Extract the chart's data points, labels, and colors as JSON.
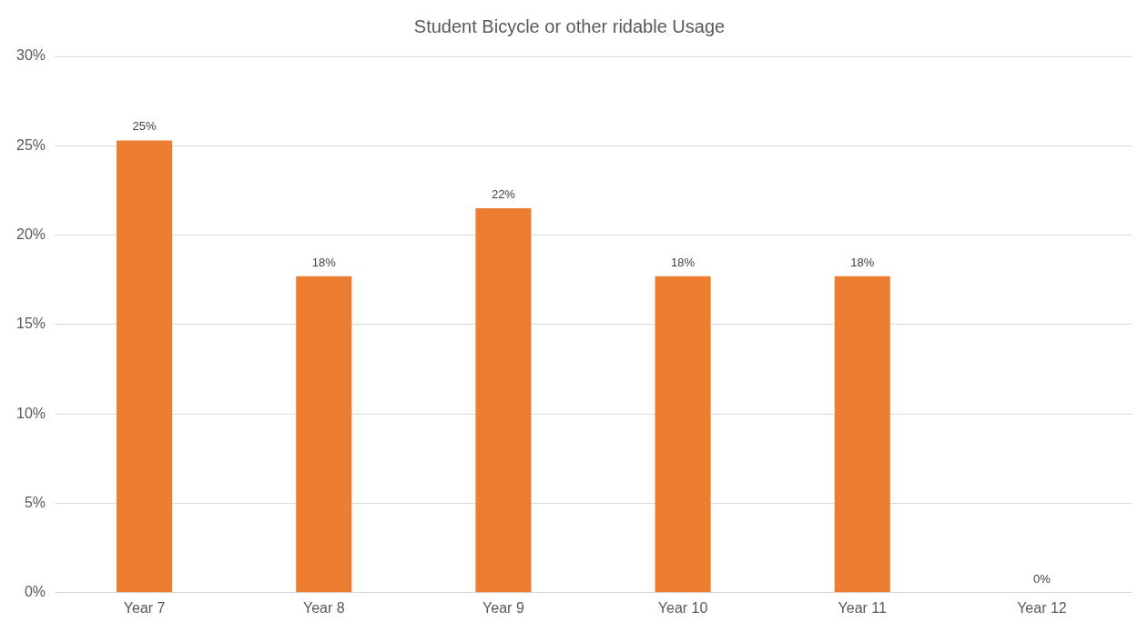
{
  "chart_data": {
    "type": "bar",
    "title": "Student Bicycle or other ridable Usage",
    "categories": [
      "Year 7",
      "Year 8",
      "Year 9",
      "Year 10",
      "Year 11",
      "Year 12"
    ],
    "values": [
      25.3,
      17.7,
      21.5,
      17.7,
      17.7,
      0
    ],
    "value_labels": [
      "25%",
      "18%",
      "22%",
      "18%",
      "18%",
      "0%"
    ],
    "color": "#ed7d31",
    "ylim": [
      0,
      30
    ],
    "yticks": [
      {
        "value": 0,
        "label": "0%"
      },
      {
        "value": 5,
        "label": "5%"
      },
      {
        "value": 10,
        "label": "10%"
      },
      {
        "value": 15,
        "label": "15%"
      },
      {
        "value": 20,
        "label": "20%"
      },
      {
        "value": 25,
        "label": "25%"
      },
      {
        "value": 30,
        "label": "30%"
      }
    ],
    "grid": "y",
    "legend": false
  }
}
